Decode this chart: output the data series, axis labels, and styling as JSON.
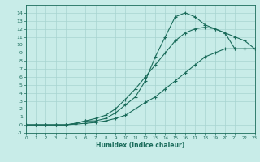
{
  "xlabel": "Humidex (Indice chaleur)",
  "bg_color": "#c8ece8",
  "grid_color": "#a8d4d0",
  "line_color": "#1a6b5a",
  "xlim": [
    0,
    23
  ],
  "ylim": [
    -1,
    15
  ],
  "xticks": [
    0,
    1,
    2,
    3,
    4,
    5,
    6,
    7,
    8,
    9,
    10,
    11,
    12,
    13,
    14,
    15,
    16,
    17,
    18,
    19,
    20,
    21,
    22,
    23
  ],
  "yticks": [
    -1,
    0,
    1,
    2,
    3,
    4,
    5,
    6,
    7,
    8,
    9,
    10,
    11,
    12,
    13,
    14
  ],
  "line1_x": [
    0,
    1,
    2,
    3,
    4,
    5,
    6,
    7,
    8,
    9,
    10,
    11,
    12,
    13,
    14,
    15,
    16,
    17,
    18,
    19,
    20,
    21,
    22,
    23
  ],
  "line1_y": [
    0,
    0,
    0,
    0,
    0,
    0.2,
    0.5,
    0.8,
    1.2,
    2.0,
    3.2,
    4.5,
    6.0,
    7.5,
    9.0,
    10.5,
    11.5,
    12.0,
    12.2,
    12.0,
    11.5,
    11.0,
    10.5,
    9.5
  ],
  "line2_x": [
    0,
    1,
    2,
    3,
    4,
    5,
    6,
    7,
    8,
    9,
    10,
    11,
    12,
    13,
    14,
    15,
    16,
    17,
    18,
    19,
    20,
    21,
    22,
    23
  ],
  "line2_y": [
    0,
    0,
    0,
    0,
    0,
    0.1,
    0.2,
    0.3,
    0.5,
    0.8,
    1.2,
    2.0,
    2.8,
    3.5,
    4.5,
    5.5,
    6.5,
    7.5,
    8.5,
    9.0,
    9.5,
    9.5,
    9.5,
    9.5
  ],
  "line3_x": [
    0,
    1,
    2,
    3,
    4,
    5,
    6,
    7,
    8,
    9,
    10,
    11,
    12,
    13,
    14,
    15,
    16,
    17,
    18,
    19,
    20,
    21,
    22,
    23
  ],
  "line3_y": [
    0,
    0,
    0,
    0,
    0,
    0.2,
    0.5,
    0.5,
    0.8,
    1.5,
    2.5,
    3.5,
    5.5,
    8.5,
    11.0,
    13.5,
    14.0,
    13.5,
    12.5,
    12.0,
    11.5,
    9.5,
    9.5,
    9.5
  ]
}
